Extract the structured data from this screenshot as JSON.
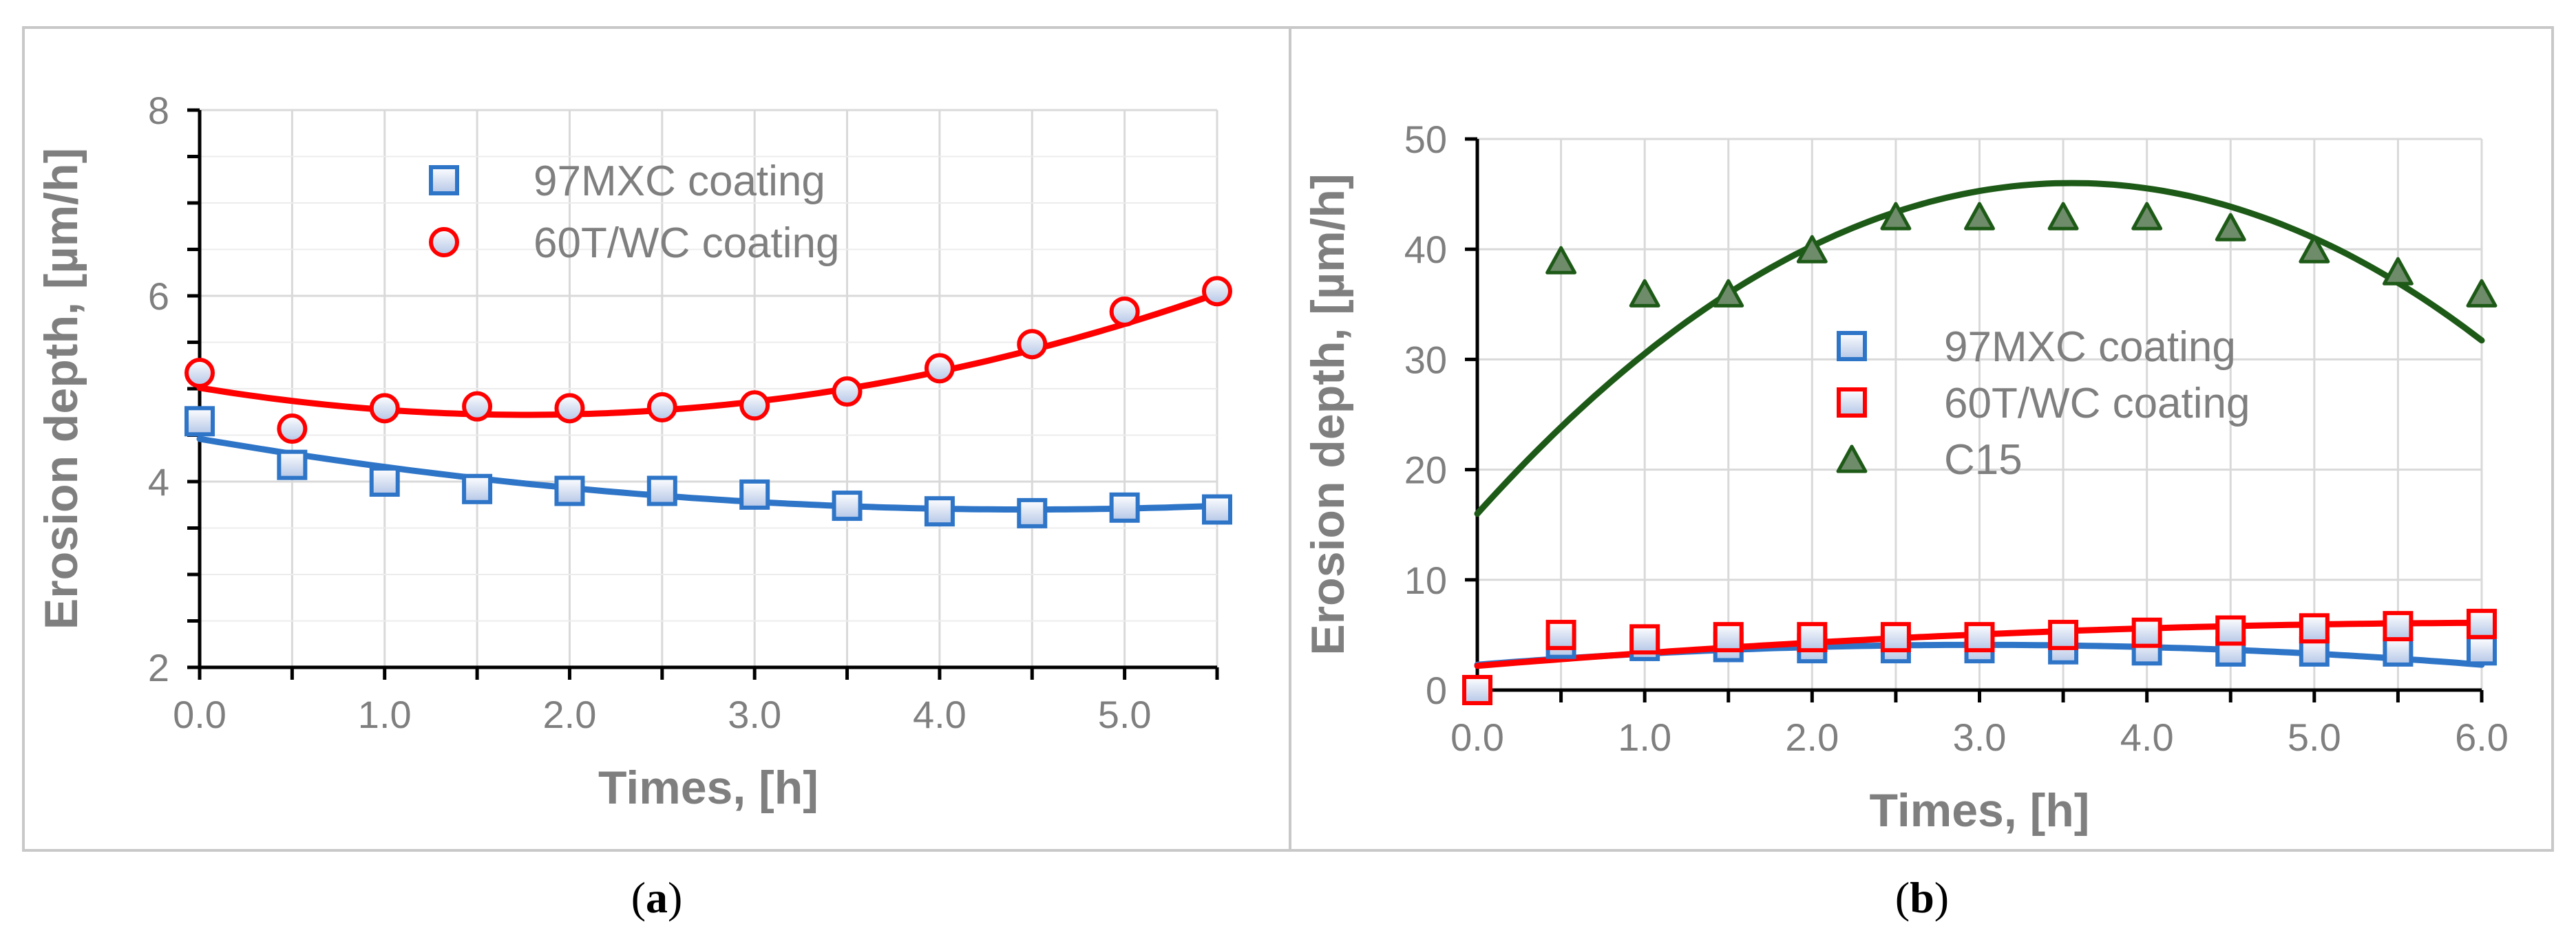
{
  "colors": {
    "blue": "#2e75c8",
    "blue_marker_edge": "#2e75c8",
    "red": "#ff0000",
    "green": "#1e5a17",
    "green_marker_fill": "#6e8b6a",
    "gridline": "#d9d9d9",
    "axis": "#000000",
    "text_gray": "#7f7f7f",
    "border": "#c8c8c8"
  },
  "chart_data": [
    {
      "panel_label": "a",
      "type": "scatter",
      "xlabel": "Times, [h]",
      "ylabel": "Erosion depth, [µm/h]",
      "xlim": [
        0,
        5.5
      ],
      "ylim": [
        2,
        8
      ],
      "x_ticks": [
        "0.0",
        "1.0",
        "2.0",
        "3.0",
        "4.0",
        "5.0"
      ],
      "x_tick_values": [
        0,
        1,
        2,
        3,
        4,
        5
      ],
      "y_ticks": [
        "2",
        "4",
        "6",
        "8"
      ],
      "y_tick_values": [
        2,
        4,
        6,
        8
      ],
      "y_minor_step": 0.5,
      "grid": true,
      "legend_position": "top-center",
      "series": [
        {
          "name": "97MXC coating",
          "marker": "square",
          "color": "#2e75c8",
          "x": [
            0,
            0.5,
            1.0,
            1.5,
            2.0,
            2.5,
            3.0,
            3.5,
            4.0,
            4.5,
            5.0,
            5.5
          ],
          "y": [
            4.65,
            4.18,
            4.0,
            3.92,
            3.9,
            3.9,
            3.86,
            3.74,
            3.68,
            3.66,
            3.72,
            3.7
          ],
          "trendline": {
            "type": "polynomial",
            "coefficients": [
              4.46,
              -0.34,
              0.038
            ]
          }
        },
        {
          "name": "60T/WC coating",
          "marker": "circle",
          "color": "#ff0000",
          "x": [
            0,
            0.5,
            1.0,
            1.5,
            2.0,
            2.5,
            3.0,
            3.5,
            4.0,
            4.5,
            5.0,
            5.5
          ],
          "y": [
            5.17,
            4.57,
            4.79,
            4.81,
            4.79,
            4.8,
            4.82,
            4.97,
            5.22,
            5.48,
            5.83,
            6.05
          ],
          "trendline": {
            "type": "polynomial",
            "coefficients": [
              5.01,
              -0.33,
              0.0935
            ]
          }
        }
      ]
    },
    {
      "panel_label": "b",
      "type": "scatter",
      "xlabel": "Times, [h]",
      "ylabel": "Erosion depth, [µm/h]",
      "xlim": [
        0,
        6
      ],
      "ylim": [
        0,
        50
      ],
      "x_ticks": [
        "0.0",
        "1.0",
        "2.0",
        "3.0",
        "4.0",
        "5.0",
        "6.0"
      ],
      "x_tick_values": [
        0,
        1,
        2,
        3,
        4,
        5,
        6
      ],
      "y_ticks": [
        "0",
        "10",
        "20",
        "30",
        "40",
        "50"
      ],
      "y_tick_values": [
        0,
        10,
        20,
        30,
        40,
        50
      ],
      "grid": true,
      "legend_position": "center",
      "series": [
        {
          "name": "97MXC coating",
          "marker": "square",
          "color": "#2e75c8",
          "x": [
            0,
            0.5,
            1.0,
            1.5,
            2.0,
            2.5,
            3.0,
            3.5,
            4.0,
            4.5,
            5.0,
            5.5,
            6.0
          ],
          "y": [
            0,
            4.2,
            4.0,
            3.9,
            3.8,
            3.8,
            3.8,
            3.7,
            3.6,
            3.5,
            3.5,
            3.5,
            3.6
          ],
          "trendline": {
            "type": "polynomial",
            "coefficients": [
              2.3,
              1.2,
              -0.2
            ]
          }
        },
        {
          "name": "60T/WC coating",
          "marker": "square",
          "color": "#ff0000",
          "x": [
            0,
            0.5,
            1.0,
            1.5,
            2.0,
            2.5,
            3.0,
            3.5,
            4.0,
            4.5,
            5.0,
            5.5,
            6.0
          ],
          "y": [
            0,
            5.0,
            4.6,
            4.8,
            4.8,
            4.8,
            4.8,
            5.0,
            5.2,
            5.4,
            5.6,
            5.8,
            6.0
          ],
          "trendline": {
            "type": "polynomial",
            "coefficients": [
              2.2,
              1.25,
              -0.1
            ]
          }
        },
        {
          "name": "C15",
          "marker": "triangle",
          "color": "#1e5a17",
          "x": [
            0.5,
            1.0,
            1.5,
            2.0,
            2.5,
            3.0,
            3.5,
            4.0,
            4.5,
            5.0,
            5.5,
            6.0
          ],
          "y": [
            39,
            36,
            36,
            40,
            43,
            43,
            43,
            43,
            42,
            40,
            38,
            36
          ],
          "trendline": {
            "type": "polynomial",
            "coefficients": [
              16,
              16.9,
              -2.38
            ]
          }
        }
      ]
    }
  ]
}
